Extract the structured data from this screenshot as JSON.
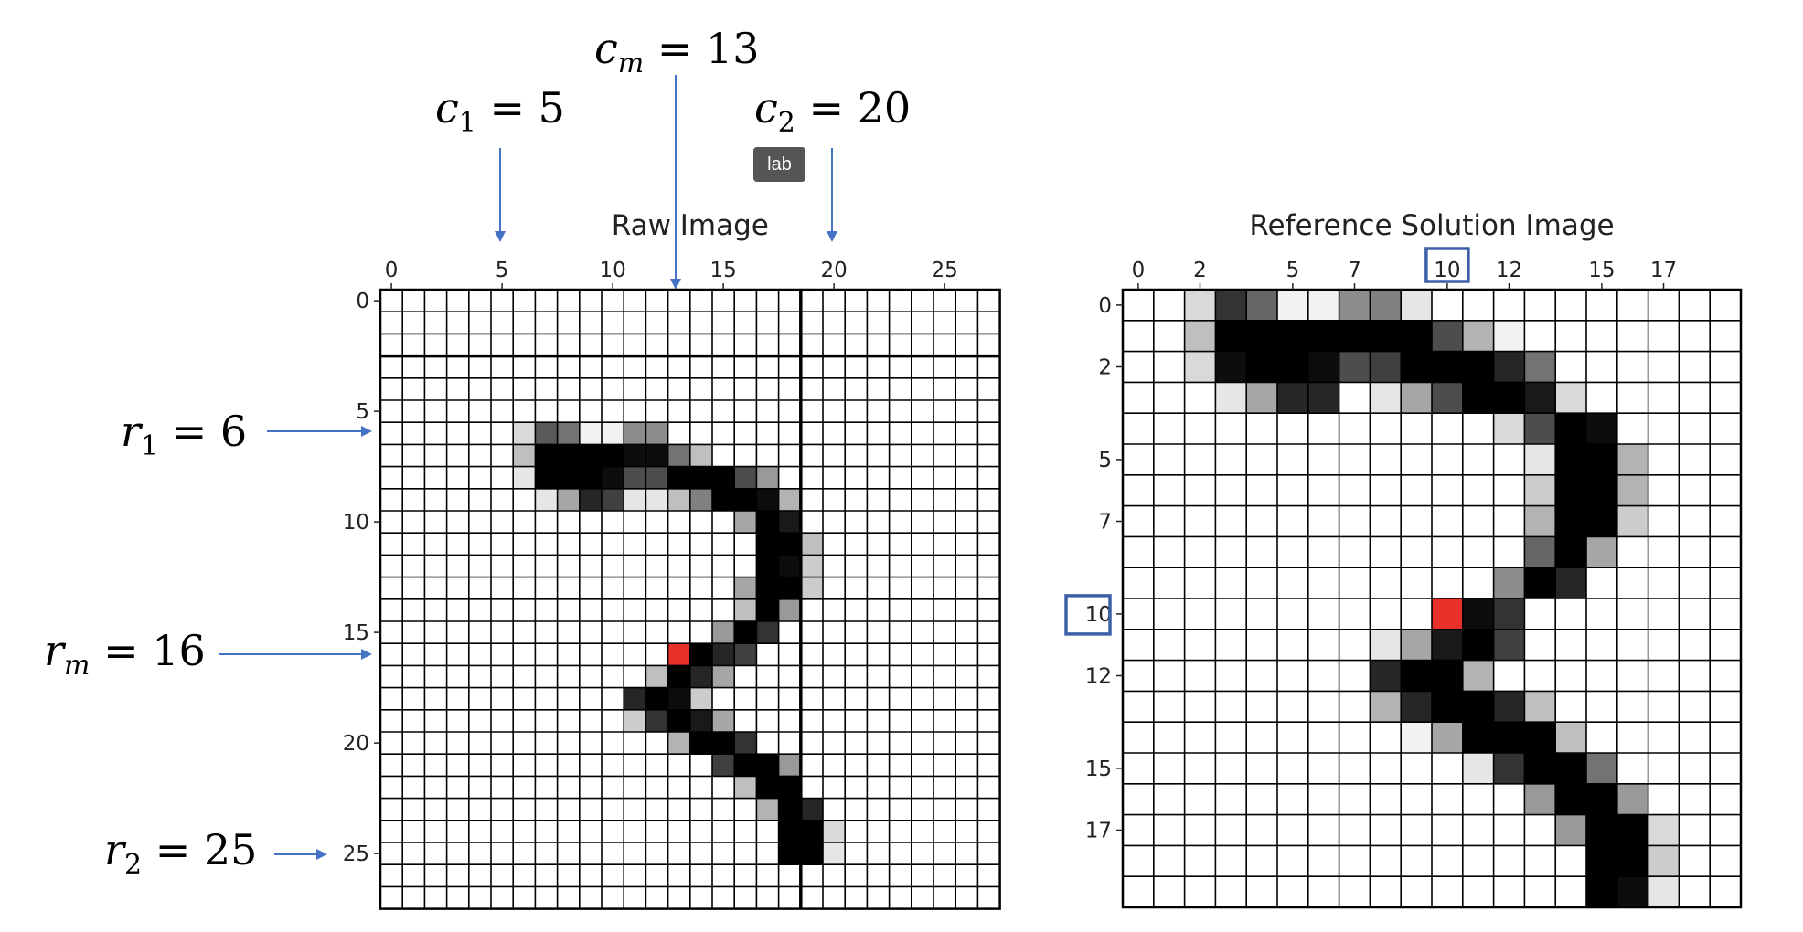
{
  "tooltip": "lab",
  "colors": {
    "accent": "#e8302a",
    "arrow": "#4472c4",
    "highlight_box": "#3d5fa8",
    "grid": "#000000"
  },
  "labels": {
    "c1": {
      "var": "c",
      "sub": "1",
      "val": "5"
    },
    "cm": {
      "var": "c",
      "sub": "m",
      "val": "13"
    },
    "c2": {
      "var": "c",
      "sub": "2",
      "val": "20"
    },
    "r1": {
      "var": "r",
      "sub": "1",
      "val": "6"
    },
    "rm": {
      "var": "r",
      "sub": "m",
      "val": "16"
    },
    "r2": {
      "var": "r",
      "sub": "2",
      "val": "25"
    }
  },
  "chart_data": [
    {
      "type": "heatmap",
      "title": "Raw Image",
      "rows": 28,
      "cols": 28,
      "xticks": [
        "0",
        "5",
        "10",
        "15",
        "20",
        "25"
      ],
      "yticks": [
        "0",
        "5",
        "10",
        "15",
        "20",
        "25"
      ],
      "tick_values": [
        0,
        5,
        10,
        15,
        20,
        25
      ],
      "heavy_lines": {
        "row_after": 2,
        "col_after": 18
      },
      "cells": [
        [
          6,
          6,
          0.15
        ],
        [
          6,
          7,
          0.65
        ],
        [
          6,
          8,
          0.55
        ],
        [
          6,
          9,
          0.05
        ],
        [
          6,
          10,
          0.05
        ],
        [
          6,
          11,
          0.45
        ],
        [
          6,
          12,
          0.45
        ],
        [
          7,
          6,
          0.25
        ],
        [
          7,
          7,
          1
        ],
        [
          7,
          8,
          1
        ],
        [
          7,
          9,
          1
        ],
        [
          7,
          10,
          1
        ],
        [
          7,
          11,
          0.95
        ],
        [
          7,
          12,
          0.95
        ],
        [
          7,
          13,
          0.55
        ],
        [
          7,
          14,
          0.25
        ],
        [
          8,
          6,
          0.1
        ],
        [
          8,
          7,
          1
        ],
        [
          8,
          8,
          1
        ],
        [
          8,
          9,
          1
        ],
        [
          8,
          10,
          0.95
        ],
        [
          8,
          11,
          0.7
        ],
        [
          8,
          12,
          0.7
        ],
        [
          8,
          13,
          1
        ],
        [
          8,
          14,
          1
        ],
        [
          8,
          15,
          1
        ],
        [
          8,
          16,
          0.7
        ],
        [
          8,
          17,
          0.4
        ],
        [
          9,
          7,
          0.1
        ],
        [
          9,
          8,
          0.35
        ],
        [
          9,
          9,
          0.85
        ],
        [
          9,
          10,
          0.75
        ],
        [
          9,
          11,
          0.1
        ],
        [
          9,
          12,
          0.1
        ],
        [
          9,
          13,
          0.25
        ],
        [
          9,
          14,
          0.5
        ],
        [
          9,
          15,
          1
        ],
        [
          9,
          16,
          1
        ],
        [
          9,
          17,
          0.95
        ],
        [
          9,
          18,
          0.3
        ],
        [
          10,
          16,
          0.35
        ],
        [
          10,
          17,
          1
        ],
        [
          10,
          18,
          0.9
        ],
        [
          11,
          17,
          1
        ],
        [
          11,
          18,
          1
        ],
        [
          11,
          19,
          0.25
        ],
        [
          12,
          17,
          1
        ],
        [
          12,
          18,
          0.95
        ],
        [
          12,
          19,
          0.2
        ],
        [
          13,
          16,
          0.35
        ],
        [
          13,
          17,
          1
        ],
        [
          13,
          18,
          1
        ],
        [
          13,
          19,
          0.2
        ],
        [
          14,
          16,
          0.25
        ],
        [
          14,
          17,
          1
        ],
        [
          14,
          18,
          0.4
        ],
        [
          15,
          15,
          0.4
        ],
        [
          15,
          16,
          1
        ],
        [
          15,
          17,
          0.8
        ],
        [
          16,
          13,
          1
        ],
        [
          16,
          14,
          1
        ],
        [
          16,
          15,
          0.85
        ],
        [
          16,
          16,
          0.75
        ],
        [
          17,
          12,
          0.25
        ],
        [
          17,
          13,
          1
        ],
        [
          17,
          14,
          0.85
        ],
        [
          17,
          15,
          0.35
        ],
        [
          18,
          11,
          0.85
        ],
        [
          18,
          12,
          1
        ],
        [
          18,
          13,
          0.95
        ],
        [
          18,
          14,
          0.2
        ],
        [
          19,
          11,
          0.2
        ],
        [
          19,
          12,
          0.8
        ],
        [
          19,
          13,
          1
        ],
        [
          19,
          14,
          0.9
        ],
        [
          19,
          15,
          0.35
        ],
        [
          20,
          13,
          0.3
        ],
        [
          20,
          14,
          1
        ],
        [
          20,
          15,
          1
        ],
        [
          20,
          16,
          0.8
        ],
        [
          21,
          15,
          0.75
        ],
        [
          21,
          16,
          1
        ],
        [
          21,
          17,
          1
        ],
        [
          21,
          18,
          0.4
        ],
        [
          22,
          16,
          0.25
        ],
        [
          22,
          17,
          1
        ],
        [
          22,
          18,
          1
        ],
        [
          23,
          17,
          0.3
        ],
        [
          23,
          18,
          1
        ],
        [
          23,
          19,
          0.85
        ],
        [
          24,
          18,
          1
        ],
        [
          24,
          19,
          1
        ],
        [
          24,
          20,
          0.15
        ],
        [
          25,
          18,
          1
        ],
        [
          25,
          19,
          1
        ],
        [
          25,
          20,
          0.1
        ]
      ],
      "marked_cell": [
        16,
        13
      ]
    },
    {
      "type": "heatmap",
      "title": "Reference Solution Image",
      "rows": 20,
      "cols": 20,
      "xticks": [
        "0",
        "2",
        "5",
        "7",
        "10",
        "12",
        "15",
        "17"
      ],
      "yticks": [
        "0",
        "2",
        "5",
        "7",
        "10",
        "12",
        "15",
        "17"
      ],
      "tick_values": [
        0,
        2,
        5,
        7,
        10,
        12,
        15,
        17
      ],
      "boxed_tick": 10,
      "cells": [
        [
          0,
          2,
          0.15
        ],
        [
          0,
          3,
          0.8
        ],
        [
          0,
          4,
          0.6
        ],
        [
          0,
          5,
          0.05
        ],
        [
          0,
          6,
          0.05
        ],
        [
          0,
          7,
          0.45
        ],
        [
          0,
          8,
          0.5
        ],
        [
          0,
          9,
          0.1
        ],
        [
          1,
          2,
          0.25
        ],
        [
          1,
          3,
          1
        ],
        [
          1,
          4,
          1
        ],
        [
          1,
          5,
          1
        ],
        [
          1,
          6,
          1
        ],
        [
          1,
          7,
          1
        ],
        [
          1,
          8,
          1
        ],
        [
          1,
          9,
          1
        ],
        [
          1,
          10,
          0.7
        ],
        [
          1,
          11,
          0.3
        ],
        [
          1,
          12,
          0.05
        ],
        [
          2,
          2,
          0.15
        ],
        [
          2,
          3,
          0.95
        ],
        [
          2,
          4,
          1
        ],
        [
          2,
          5,
          1
        ],
        [
          2,
          6,
          0.95
        ],
        [
          2,
          7,
          0.7
        ],
        [
          2,
          8,
          0.75
        ],
        [
          2,
          9,
          1
        ],
        [
          2,
          10,
          1
        ],
        [
          2,
          11,
          1
        ],
        [
          2,
          12,
          0.85
        ],
        [
          2,
          13,
          0.55
        ],
        [
          3,
          3,
          0.1
        ],
        [
          3,
          4,
          0.35
        ],
        [
          3,
          5,
          0.85
        ],
        [
          3,
          6,
          0.85
        ],
        [
          3,
          8,
          0.1
        ],
        [
          3,
          9,
          0.35
        ],
        [
          3,
          10,
          0.7
        ],
        [
          3,
          11,
          1
        ],
        [
          3,
          12,
          1
        ],
        [
          3,
          13,
          0.9
        ],
        [
          3,
          14,
          0.15
        ],
        [
          4,
          12,
          0.15
        ],
        [
          4,
          13,
          0.7
        ],
        [
          4,
          14,
          1
        ],
        [
          4,
          15,
          0.95
        ],
        [
          5,
          13,
          0.1
        ],
        [
          5,
          14,
          1
        ],
        [
          5,
          15,
          1
        ],
        [
          5,
          16,
          0.3
        ],
        [
          6,
          13,
          0.2
        ],
        [
          6,
          14,
          1
        ],
        [
          6,
          15,
          1
        ],
        [
          6,
          16,
          0.3
        ],
        [
          7,
          13,
          0.3
        ],
        [
          7,
          14,
          1
        ],
        [
          7,
          15,
          1
        ],
        [
          7,
          16,
          0.2
        ],
        [
          8,
          13,
          0.6
        ],
        [
          8,
          14,
          1
        ],
        [
          8,
          15,
          0.35
        ],
        [
          9,
          12,
          0.45
        ],
        [
          9,
          13,
          1
        ],
        [
          9,
          14,
          0.85
        ],
        [
          10,
          10,
          0.35
        ],
        [
          10,
          11,
          0.95
        ],
        [
          10,
          12,
          0.8
        ],
        [
          11,
          8,
          0.1
        ],
        [
          11,
          9,
          0.35
        ],
        [
          11,
          10,
          0.9
        ],
        [
          11,
          11,
          1
        ],
        [
          11,
          12,
          0.75
        ],
        [
          12,
          8,
          0.85
        ],
        [
          12,
          9,
          1
        ],
        [
          12,
          10,
          1
        ],
        [
          12,
          11,
          0.3
        ],
        [
          13,
          8,
          0.3
        ],
        [
          13,
          9,
          0.85
        ],
        [
          13,
          10,
          1
        ],
        [
          13,
          11,
          1
        ],
        [
          13,
          12,
          0.85
        ],
        [
          13,
          13,
          0.25
        ],
        [
          14,
          9,
          0.05
        ],
        [
          14,
          10,
          0.35
        ],
        [
          14,
          11,
          1
        ],
        [
          14,
          12,
          1
        ],
        [
          14,
          13,
          1
        ],
        [
          14,
          14,
          0.25
        ],
        [
          15,
          11,
          0.1
        ],
        [
          15,
          12,
          0.8
        ],
        [
          15,
          13,
          1
        ],
        [
          15,
          14,
          1
        ],
        [
          15,
          15,
          0.55
        ],
        [
          16,
          13,
          0.4
        ],
        [
          16,
          14,
          1
        ],
        [
          16,
          15,
          1
        ],
        [
          16,
          16,
          0.4
        ],
        [
          17,
          14,
          0.4
        ],
        [
          17,
          15,
          1
        ],
        [
          17,
          16,
          1
        ],
        [
          17,
          17,
          0.15
        ],
        [
          18,
          15,
          1
        ],
        [
          18,
          16,
          1
        ],
        [
          18,
          17,
          0.2
        ],
        [
          19,
          15,
          1
        ],
        [
          19,
          16,
          0.95
        ],
        [
          19,
          17,
          0.1
        ]
      ],
      "marked_cell": [
        10,
        10
      ]
    }
  ]
}
